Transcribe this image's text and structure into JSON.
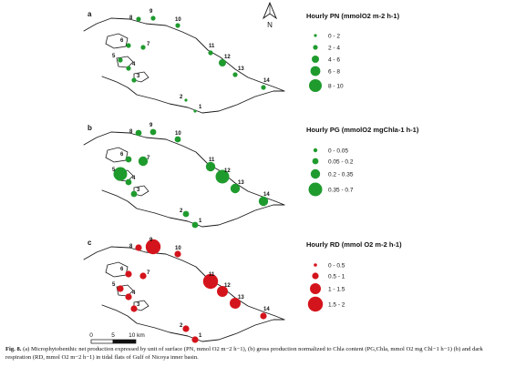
{
  "panels": [
    {
      "letter": "a",
      "legend_title": "Hourly PN (mmolO2 m-2 h-1)",
      "color": "#1f9b2e",
      "legend_classes": [
        "0 - 2",
        "2 - 4",
        "4 - 6",
        "6 - 8",
        "8 - 10"
      ],
      "class_index": {
        "1": 0,
        "2": 0,
        "3": 1,
        "4": 1,
        "5": 1,
        "6": 1,
        "7": 1,
        "8": 1,
        "9": 1,
        "10": 1,
        "11": 1,
        "12": 2,
        "13": 1,
        "14": 1
      }
    },
    {
      "letter": "b",
      "legend_title": "Hourly PG (mmolO2 mgChla-1 h-1)",
      "color": "#1f9b2e",
      "legend_classes": [
        "0 - 0.05",
        "0.05 - 0.2",
        "0.2 - 0.35",
        "0.35 - 0.7"
      ],
      "class_index": {
        "1": 1,
        "2": 1,
        "3": 1,
        "4": 1,
        "5": 3,
        "6": 1,
        "7": 2,
        "8": 1,
        "9": 1,
        "10": 1,
        "11": 2,
        "12": 3,
        "13": 2,
        "14": 2
      }
    },
    {
      "letter": "c",
      "legend_title": "Hourly RD (mmol O2 m-2 h-1)",
      "color": "#d4141c",
      "legend_classes": [
        "0 - 0.5",
        "0.5 - 1",
        "1 - 1.5",
        "1.5 - 2"
      ],
      "class_index": {
        "1": 1,
        "2": 1,
        "3": 1,
        "4": 1,
        "5": 1,
        "6": 1,
        "7": 1,
        "8": 1,
        "9": 3,
        "10": 1,
        "11": 3,
        "12": 2,
        "13": 2,
        "14": 1
      }
    }
  ],
  "site_labels": [
    "1",
    "2",
    "3",
    "4",
    "5",
    "6",
    "7",
    "8",
    "9",
    "10",
    "11",
    "12",
    "13",
    "14"
  ],
  "north_arrow": {
    "letter": "N",
    "icon": "north-arrow-icon"
  },
  "scale_bar": {
    "labels": [
      "0",
      "5",
      "10 km"
    ]
  },
  "caption": {
    "label": "Fig. 8.",
    "text": "(a) Microphytobenthic net production expressed by unit of surface (PN, mmol O2 m−2 h−1), (b) gross production normalized to Chla content (PG,Chla, mmol O2 mg Chl−1 h−1) (b) and dark respiration (RD, mmol O2 m−2 h−1) in tidal flats of Gulf of Nicoya inner basin."
  }
}
